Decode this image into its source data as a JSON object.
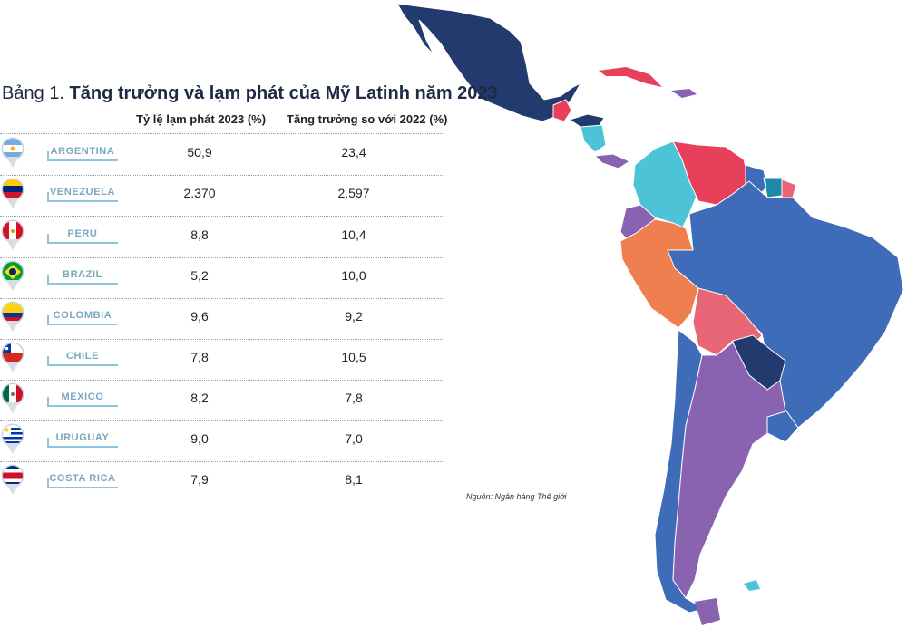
{
  "title": {
    "prefix": "Bảng 1.",
    "main": "Tăng trưởng và lạm phát của Mỹ Latinh năm 2023"
  },
  "columns": {
    "inflation": "Tỷ lệ lạm phát 2023 (%)",
    "growth": "Tăng trưởng so với 2022 (%)"
  },
  "rows": [
    {
      "country": "ARGENTINA",
      "inflation": "50,9",
      "growth": "23,4"
    },
    {
      "country": "VENEZUELA",
      "inflation": "2.370",
      "growth": "2.597"
    },
    {
      "country": "PERU",
      "inflation": "8,8",
      "growth": "10,4"
    },
    {
      "country": "BRAZIL",
      "inflation": "5,2",
      "growth": "10,0"
    },
    {
      "country": "COLOMBIA",
      "inflation": "9,6",
      "growth": "9,2"
    },
    {
      "country": "CHILE",
      "inflation": "7,8",
      "growth": "10,5"
    },
    {
      "country": "MEXICO",
      "inflation": "8,2",
      "growth": "7,8"
    },
    {
      "country": "URUGUAY",
      "inflation": "9,0",
      "growth": "7,0"
    },
    {
      "country": "COSTA RICA",
      "inflation": "7,9",
      "growth": "8,1"
    }
  ],
  "source": "Nguồn: Ngân hàng Thế giới",
  "colors": {
    "navy": "#233a6e",
    "blue": "#3e6cb8",
    "red": "#e8405a",
    "cyan": "#4cc3d6",
    "purple": "#8a63b0",
    "orange": "#f07f50",
    "pink": "#e86676",
    "teal": "#1f8aa8",
    "label": "#7aa7bf",
    "underline": "#8fc4de"
  }
}
